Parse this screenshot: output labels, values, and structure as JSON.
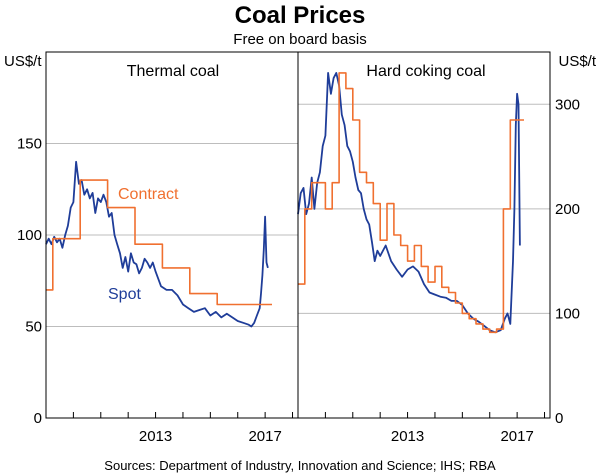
{
  "chart_data": {
    "type": "line",
    "title": "Coal Prices",
    "subtitle": "Free on board basis",
    "left_unit": "US$/t",
    "right_unit": "US$/t",
    "source": "Sources:  Department of Industry, Innovation and Science; IHS; RBA",
    "panels": [
      {
        "title": "Thermal coal",
        "ylim": [
          0,
          200
        ],
        "yticks": [
          0,
          50,
          100,
          150
        ],
        "xlim": [
          2009.0,
          2018.2
        ],
        "xtick_labels": [
          "2013",
          "2017"
        ],
        "xtick_label_years": [
          2013,
          2017
        ],
        "xticks_minor": [
          2010,
          2011,
          2012,
          2013,
          2014,
          2015,
          2016,
          2017,
          2018
        ],
        "series": [
          {
            "name": "Spot",
            "color": "#1f3d99",
            "x": [
              2009.0,
              2009.1,
              2009.2,
              2009.3,
              2009.4,
              2009.5,
              2009.6,
              2009.7,
              2009.8,
              2009.9,
              2010.0,
              2010.1,
              2010.2,
              2010.3,
              2010.4,
              2010.5,
              2010.6,
              2010.7,
              2010.8,
              2010.9,
              2011.0,
              2011.1,
              2011.2,
              2011.3,
              2011.4,
              2011.5,
              2011.6,
              2011.7,
              2011.8,
              2011.9,
              2012.0,
              2012.1,
              2012.2,
              2012.3,
              2012.4,
              2012.5,
              2012.6,
              2012.7,
              2012.8,
              2012.9,
              2013.0,
              2013.2,
              2013.4,
              2013.6,
              2013.8,
              2014.0,
              2014.2,
              2014.4,
              2014.6,
              2014.8,
              2015.0,
              2015.2,
              2015.4,
              2015.6,
              2015.8,
              2016.0,
              2016.2,
              2016.4,
              2016.5,
              2016.6,
              2016.7,
              2016.8,
              2016.85,
              2016.9,
              2016.95,
              2017.0,
              2017.05,
              2017.1
            ],
            "y": [
              95,
              98,
              95,
              99,
              96,
              98,
              93,
              100,
              105,
              115,
              118,
              140,
              128,
              130,
              122,
              125,
              120,
              123,
              112,
              120,
              118,
              122,
              118,
              110,
              112,
              100,
              95,
              90,
              82,
              88,
              80,
              90,
              85,
              84,
              79,
              82,
              87,
              85,
              82,
              85,
              80,
              72,
              70,
              70,
              67,
              62,
              60,
              58,
              59,
              60,
              56,
              58,
              55,
              57,
              55,
              53,
              52,
              51,
              50,
              52,
              56,
              60,
              68,
              78,
              92,
              110,
              85,
              82
            ]
          },
          {
            "name": "Contract",
            "color": "#f07030",
            "x": [
              2009.0,
              2009.25,
              2009.25,
              2010.25,
              2010.25,
              2011.25,
              2011.25,
              2012.25,
              2012.25,
              2013.25,
              2013.25,
              2014.25,
              2014.25,
              2015.25,
              2015.25,
              2016.25,
              2016.25,
              2017.25
            ],
            "y": [
              70,
              70,
              98,
              98,
              130,
              130,
              115,
              115,
              95,
              95,
              82,
              82,
              68,
              68,
              62,
              62,
              62,
              62
            ]
          }
        ]
      },
      {
        "title": "Hard coking coal",
        "ylim": [
          0,
          350
        ],
        "yticks": [
          0,
          100,
          200,
          300
        ],
        "xlim": [
          2009.0,
          2018.2
        ],
        "xtick_labels": [
          "2013",
          "2017"
        ],
        "xtick_label_years": [
          2013,
          2017
        ],
        "xticks_minor": [
          2010,
          2011,
          2012,
          2013,
          2014,
          2015,
          2016,
          2017,
          2018
        ],
        "series": [
          {
            "name": "Spot",
            "color": "#1f3d99",
            "x": [
              2009.0,
              2009.1,
              2009.2,
              2009.3,
              2009.4,
              2009.5,
              2009.6,
              2009.7,
              2009.8,
              2009.9,
              2010.0,
              2010.1,
              2010.2,
              2010.3,
              2010.4,
              2010.5,
              2010.6,
              2010.7,
              2010.8,
              2010.9,
              2011.0,
              2011.1,
              2011.2,
              2011.3,
              2011.4,
              2011.5,
              2011.6,
              2011.7,
              2011.8,
              2011.9,
              2012.0,
              2012.2,
              2012.4,
              2012.6,
              2012.8,
              2013.0,
              2013.2,
              2013.4,
              2013.6,
              2013.8,
              2014.0,
              2014.2,
              2014.4,
              2014.6,
              2014.8,
              2015.0,
              2015.2,
              2015.4,
              2015.6,
              2015.8,
              2016.0,
              2016.2,
              2016.4,
              2016.55,
              2016.65,
              2016.75,
              2016.85,
              2016.9,
              2016.95,
              2017.0,
              2017.05,
              2017.1
            ],
            "y": [
              195,
              215,
              220,
              195,
              205,
              230,
              200,
              225,
              235,
              260,
              270,
              330,
              310,
              325,
              330,
              318,
              290,
              280,
              260,
              255,
              245,
              230,
              218,
              215,
              200,
              190,
              185,
              168,
              150,
              160,
              155,
              165,
              150,
              142,
              135,
              142,
              145,
              140,
              128,
              120,
              118,
              116,
              115,
              112,
              112,
              108,
              100,
              95,
              92,
              88,
              84,
              82,
              84,
              95,
              100,
              90,
              150,
              200,
              280,
              310,
              300,
              165
            ]
          },
          {
            "name": "Contract",
            "color": "#f07030",
            "x": [
              2009.0,
              2009.25,
              2009.25,
              2009.5,
              2009.5,
              2010.0,
              2010.0,
              2010.25,
              2010.25,
              2010.5,
              2010.5,
              2010.75,
              2010.75,
              2011.0,
              2011.0,
              2011.25,
              2011.25,
              2011.5,
              2011.5,
              2011.75,
              2011.75,
              2012.0,
              2012.0,
              2012.25,
              2012.25,
              2012.5,
              2012.5,
              2012.75,
              2012.75,
              2013.0,
              2013.0,
              2013.25,
              2013.25,
              2013.5,
              2013.5,
              2013.75,
              2013.75,
              2014.0,
              2014.0,
              2014.25,
              2014.25,
              2014.5,
              2014.5,
              2014.75,
              2014.75,
              2015.0,
              2015.0,
              2015.25,
              2015.25,
              2015.5,
              2015.5,
              2015.75,
              2015.75,
              2016.0,
              2016.0,
              2016.25,
              2016.25,
              2016.5,
              2016.5,
              2016.75,
              2016.75,
              2017.0,
              2017.0,
              2017.25
            ],
            "y": [
              128,
              128,
              200,
              200,
              225,
              225,
              200,
              200,
              225,
              225,
              330,
              330,
              315,
              315,
              285,
              285,
              235,
              235,
              225,
              225,
              205,
              205,
              170,
              170,
              205,
              205,
              175,
              175,
              165,
              165,
              150,
              150,
              165,
              165,
              145,
              145,
              130,
              130,
              145,
              145,
              125,
              125,
              120,
              120,
              110,
              110,
              100,
              100,
              95,
              95,
              90,
              90,
              85,
              85,
              82,
              82,
              85,
              85,
              200,
              200,
              285,
              285,
              285,
              285
            ]
          }
        ]
      }
    ],
    "annotations": [
      {
        "panel": 0,
        "text": "Contract",
        "color": "#f07030"
      },
      {
        "panel": 0,
        "text": "Spot",
        "color": "#1f3d99"
      }
    ]
  }
}
